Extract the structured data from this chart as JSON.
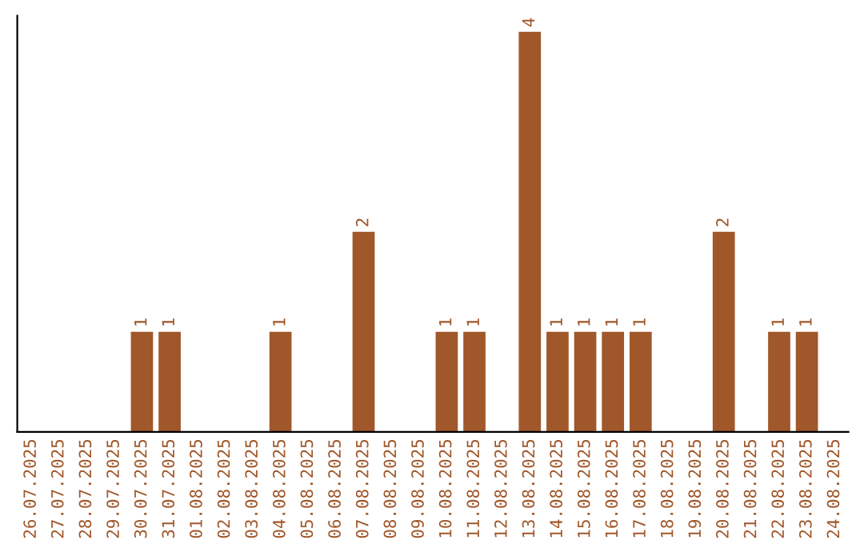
{
  "chart_data": {
    "type": "bar",
    "categories": [
      "26.07.2025",
      "27.07.2025",
      "28.07.2025",
      "29.07.2025",
      "30.07.2025",
      "31.07.2025",
      "01.08.2025",
      "02.08.2025",
      "03.08.2025",
      "04.08.2025",
      "05.08.2025",
      "06.08.2025",
      "07.08.2025",
      "08.08.2025",
      "09.08.2025",
      "10.08.2025",
      "11.08.2025",
      "12.08.2025",
      "13.08.2025",
      "14.08.2025",
      "15.08.2025",
      "16.08.2025",
      "17.08.2025",
      "18.08.2025",
      "19.08.2025",
      "20.08.2025",
      "21.08.2025",
      "22.08.2025",
      "23.08.2025",
      "24.08.2025"
    ],
    "values": [
      0,
      0,
      0,
      0,
      1,
      1,
      0,
      0,
      0,
      1,
      0,
      0,
      2,
      0,
      0,
      1,
      1,
      0,
      4,
      1,
      1,
      1,
      1,
      0,
      0,
      2,
      0,
      1,
      1,
      0
    ],
    "value_labels": [
      null,
      null,
      null,
      null,
      "1",
      "1",
      null,
      null,
      null,
      "1",
      null,
      null,
      "2",
      null,
      null,
      "1",
      "1",
      null,
      "4",
      "1",
      "1",
      "1",
      "1",
      null,
      null,
      "2",
      null,
      "1",
      "1",
      null
    ],
    "color": "#a0572a",
    "tick_labels": "x",
    "grid": false,
    "legend": false
  }
}
